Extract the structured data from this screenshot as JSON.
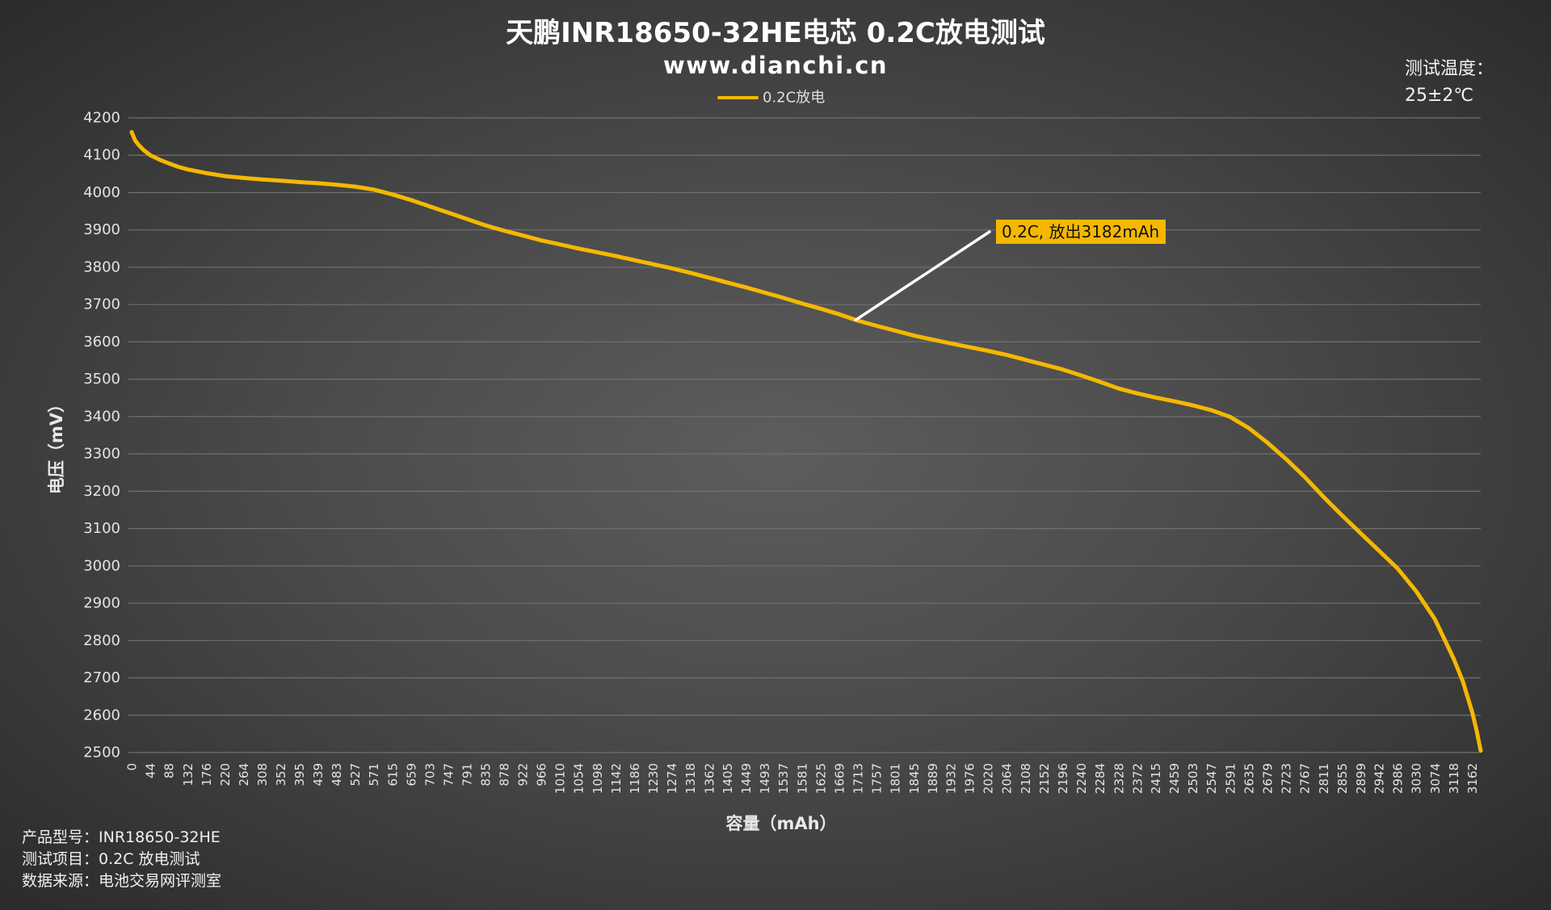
{
  "chart_data": {
    "type": "line",
    "title": "天鹏INR18650-32HE电芯 0.2C放电测试",
    "subtitle": "www.dianchi.cn",
    "xlabel": "容量（mAh）",
    "ylabel": "电压（mV）",
    "xlim": [
      0,
      3182
    ],
    "ylim": [
      2500,
      4200
    ],
    "grid": "horizontal",
    "legend": {
      "position": "top-center"
    },
    "y_ticks": [
      4200,
      4100,
      4000,
      3900,
      3800,
      3700,
      3600,
      3500,
      3400,
      3300,
      3200,
      3100,
      3000,
      2900,
      2800,
      2700,
      2600,
      2500
    ],
    "x_ticks": [
      0,
      44,
      88,
      132,
      176,
      220,
      264,
      308,
      352,
      395,
      439,
      483,
      527,
      571,
      615,
      659,
      703,
      747,
      791,
      835,
      878,
      922,
      966,
      1010,
      1054,
      1098,
      1142,
      1186,
      1230,
      1274,
      1318,
      1362,
      1405,
      1449,
      1493,
      1537,
      1581,
      1625,
      1669,
      1713,
      1757,
      1801,
      1845,
      1889,
      1932,
      1976,
      2020,
      2064,
      2108,
      2152,
      2196,
      2240,
      2284,
      2328,
      2372,
      2415,
      2459,
      2503,
      2547,
      2591,
      2635,
      2679,
      2723,
      2767,
      2811,
      2855,
      2899,
      2942,
      2986,
      3030,
      3074,
      3118,
      3162
    ],
    "series": [
      {
        "name": "0.2C放电",
        "color": "#f5b800",
        "x": [
          0,
          8,
          16,
          28,
          44,
          66,
          88,
          110,
          132,
          176,
          220,
          264,
          308,
          352,
          395,
          439,
          483,
          527,
          571,
          615,
          659,
          703,
          747,
          791,
          835,
          878,
          922,
          966,
          1010,
          1054,
          1098,
          1142,
          1186,
          1230,
          1274,
          1318,
          1362,
          1405,
          1449,
          1493,
          1537,
          1581,
          1625,
          1669,
          1713,
          1757,
          1801,
          1845,
          1889,
          1932,
          1976,
          2020,
          2064,
          2108,
          2152,
          2196,
          2240,
          2284,
          2328,
          2372,
          2415,
          2459,
          2503,
          2547,
          2591,
          2635,
          2679,
          2723,
          2767,
          2811,
          2855,
          2899,
          2942,
          2986,
          3030,
          3074,
          3118,
          3140,
          3162,
          3172,
          3182
        ],
        "y": [
          4162,
          4140,
          4128,
          4114,
          4100,
          4088,
          4078,
          4069,
          4062,
          4052,
          4044,
          4039,
          4035,
          4032,
          4028,
          4025,
          4021,
          4016,
          4008,
          3995,
          3980,
          3963,
          3946,
          3929,
          3912,
          3898,
          3885,
          3872,
          3861,
          3850,
          3840,
          3830,
          3819,
          3808,
          3797,
          3785,
          3772,
          3759,
          3746,
          3732,
          3718,
          3703,
          3689,
          3674,
          3657,
          3643,
          3630,
          3617,
          3606,
          3596,
          3586,
          3576,
          3565,
          3552,
          3539,
          3526,
          3510,
          3493,
          3475,
          3462,
          3451,
          3441,
          3430,
          3417,
          3399,
          3369,
          3330,
          3286,
          3238,
          3185,
          3135,
          3087,
          3041,
          2993,
          2932,
          2857,
          2752,
          2690,
          2608,
          2560,
          2505
        ]
      }
    ],
    "annotation": {
      "text": "0.2C, 放出3182mAh",
      "box_color": "#f5b800",
      "line_color": "#ffffff"
    }
  },
  "test_conditions": {
    "label": "测试温度：",
    "value": "25±2℃"
  },
  "footer": {
    "lines": [
      "产品型号：INR18650-32HE",
      "测试项目：0.2C 放电测试",
      "数据来源：电池交易网评测室"
    ]
  }
}
